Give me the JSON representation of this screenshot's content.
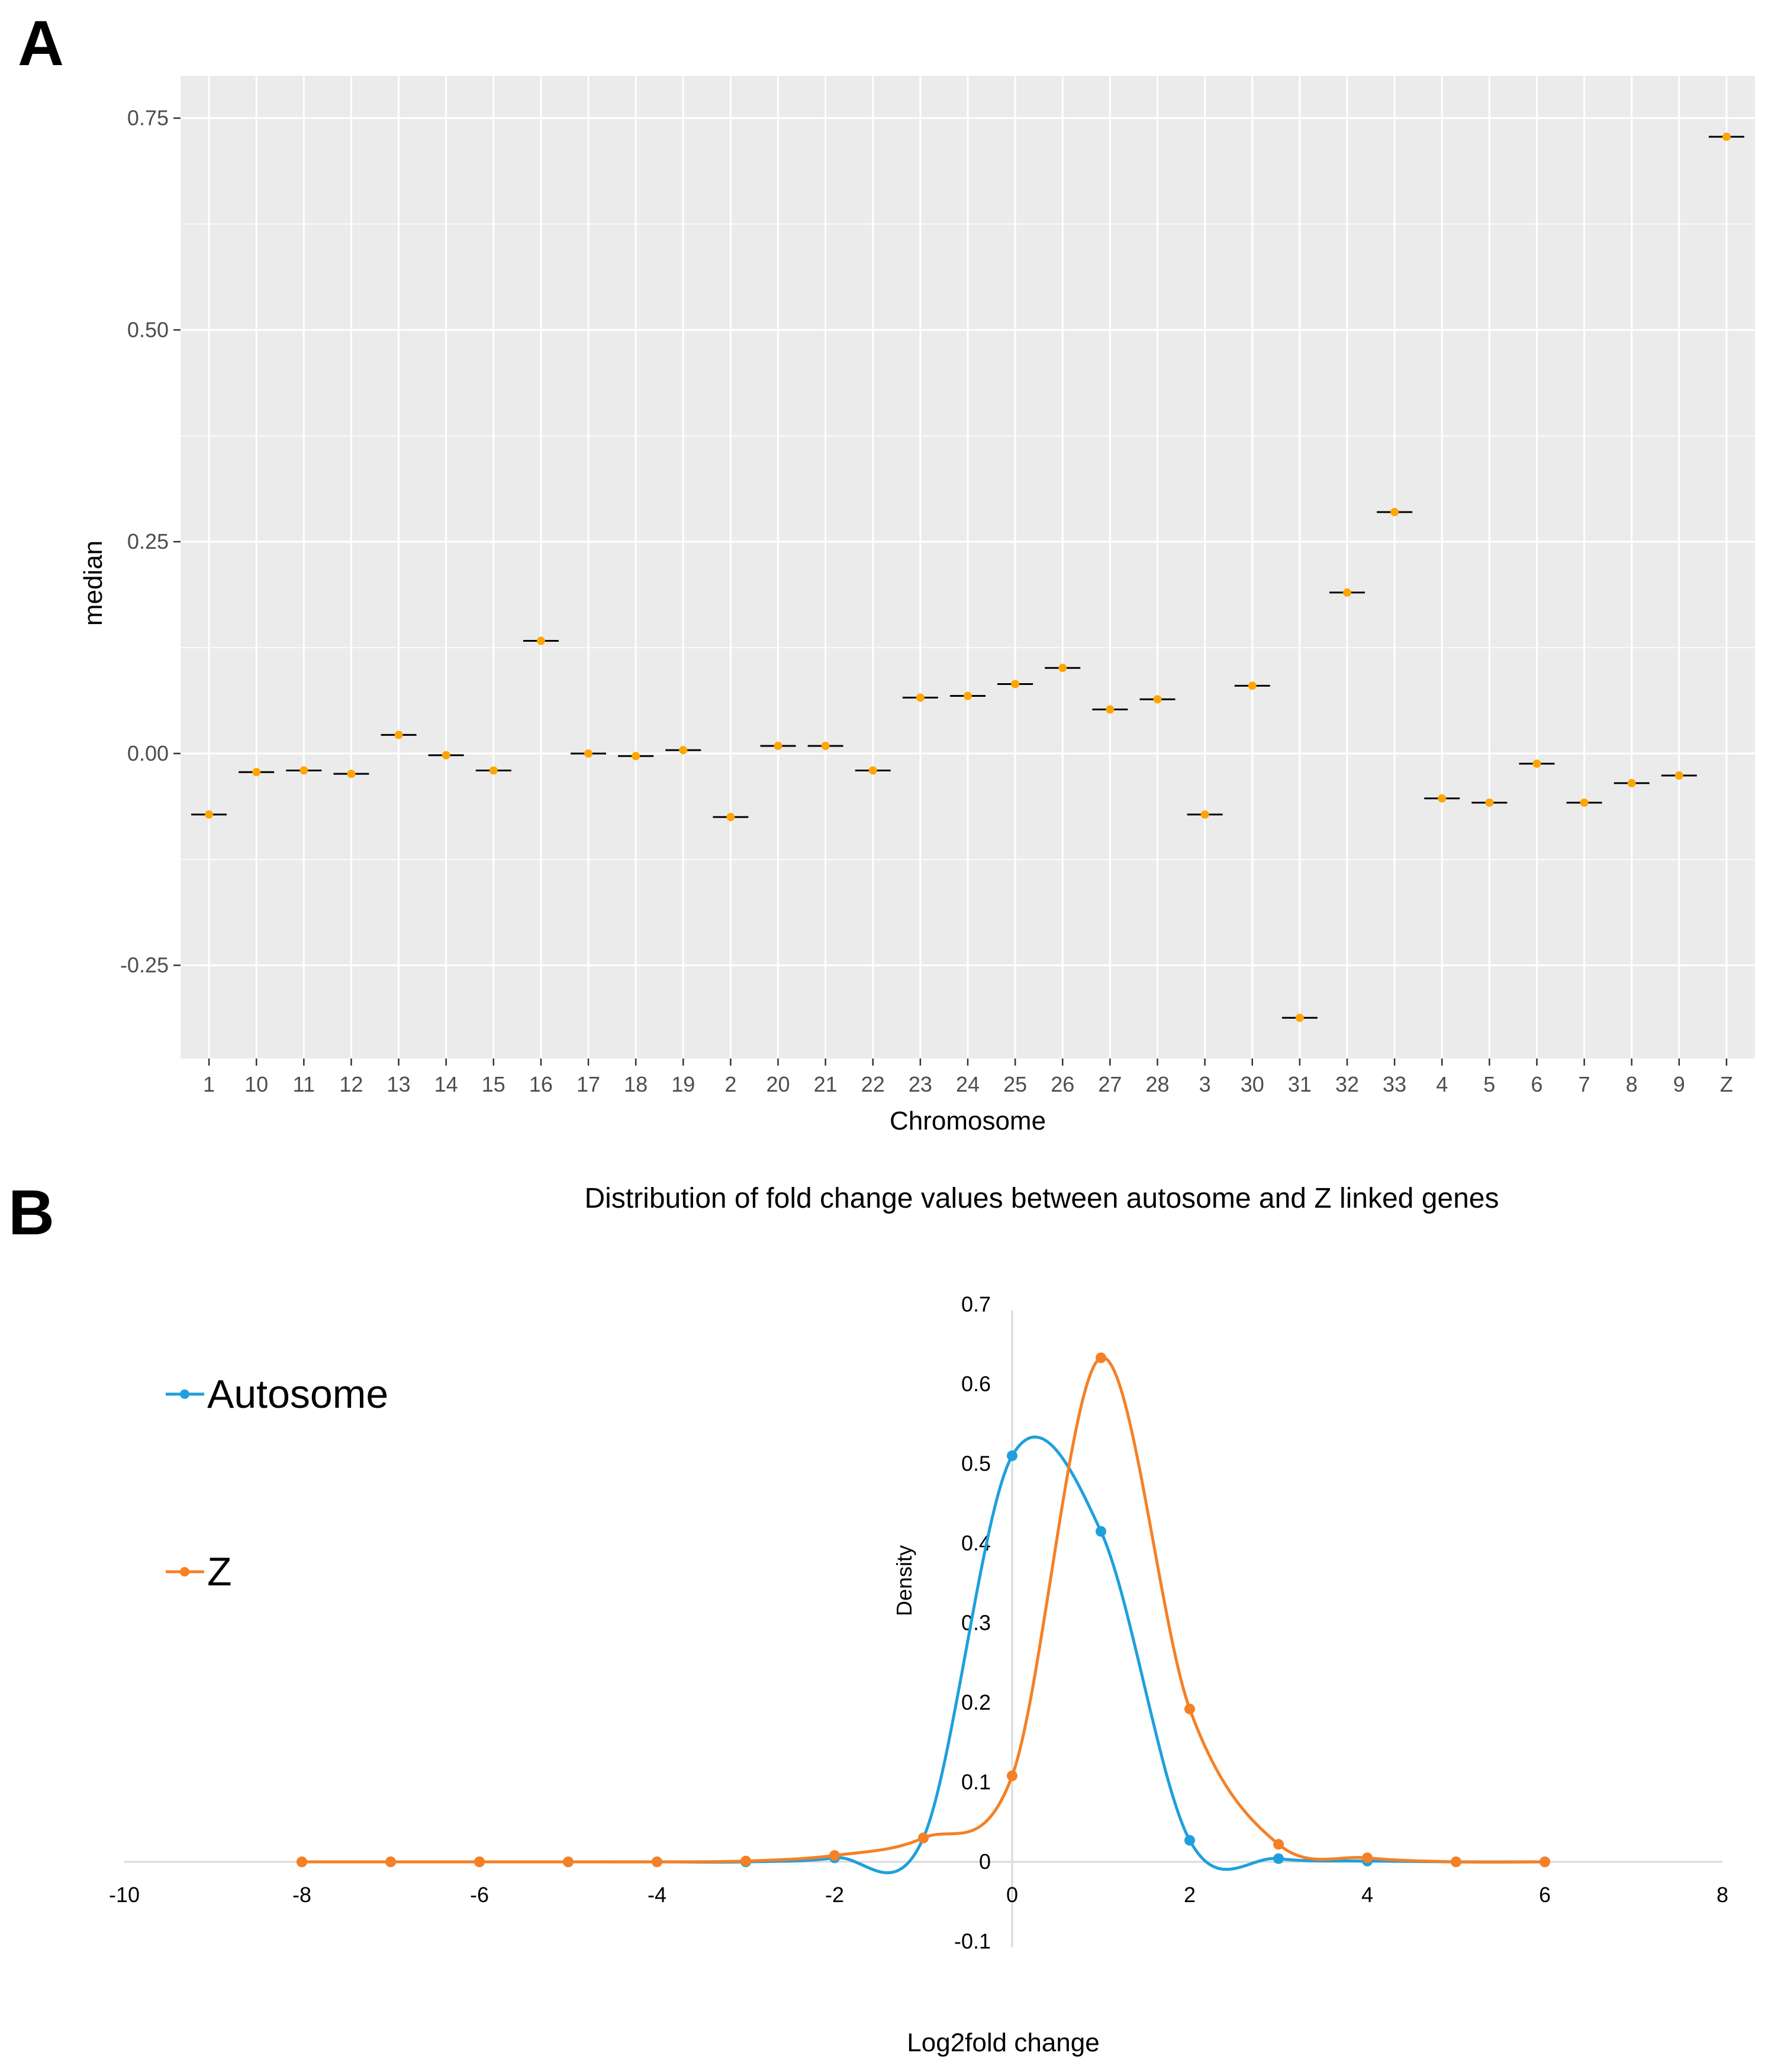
{
  "figure": {
    "panel_a_label": "A",
    "panel_b_label": "B"
  },
  "chart_data": [
    {
      "type": "scatter",
      "panel": "A",
      "title": "",
      "xlabel": "Chromosome",
      "ylabel": "median",
      "categories": [
        "1",
        "10",
        "11",
        "12",
        "13",
        "14",
        "15",
        "16",
        "17",
        "18",
        "19",
        "2",
        "20",
        "21",
        "22",
        "23",
        "24",
        "25",
        "26",
        "27",
        "28",
        "3",
        "30",
        "31",
        "32",
        "33",
        "4",
        "5",
        "6",
        "7",
        "8",
        "9",
        "Z"
      ],
      "values": [
        -0.072,
        -0.022,
        -0.02,
        -0.024,
        0.022,
        -0.002,
        -0.02,
        0.133,
        0.0,
        -0.003,
        0.004,
        -0.075,
        0.009,
        0.009,
        -0.02,
        0.066,
        0.068,
        0.082,
        0.101,
        0.052,
        0.064,
        -0.072,
        0.08,
        -0.312,
        0.19,
        0.285,
        -0.053,
        -0.058,
        -0.012,
        -0.058,
        -0.035,
        -0.026,
        0.728
      ],
      "yticks": [
        "-0.25",
        "0.00",
        "0.25",
        "0.50",
        "0.75"
      ],
      "ytick_values": [
        -0.25,
        0,
        0.25,
        0.5,
        0.75
      ],
      "ylim": [
        -0.36,
        0.8
      ],
      "colors": {
        "point": "#FFA500",
        "median_bar": "#000000",
        "panel_bg": "#EBEBEB",
        "grid": "#FFFFFF"
      }
    },
    {
      "type": "line",
      "panel": "B",
      "title": "Distribution of fold change values between autosome and Z linked genes",
      "xlabel": "Log2fold change",
      "ylabel": "Density",
      "xlim": [
        -10,
        8
      ],
      "ylim": [
        -0.1,
        0.7
      ],
      "xticks": [
        "-10",
        "-8",
        "-6",
        "-4",
        "-2",
        "0",
        "2",
        "4",
        "6",
        "8"
      ],
      "xtick_values": [
        -10,
        -8,
        -6,
        -4,
        -2,
        0,
        2,
        4,
        6,
        8
      ],
      "yticks": [
        "-0.1",
        "0",
        "0.1",
        "0.2",
        "0.3",
        "0.4",
        "0.5",
        "0.6",
        "0.7"
      ],
      "ytick_values": [
        -0.1,
        0,
        0.1,
        0.2,
        0.3,
        0.4,
        0.5,
        0.6,
        0.7
      ],
      "legend_position": "left",
      "series": [
        {
          "name": "Autosome",
          "color": "#1FA0DC",
          "x": [
            -8,
            -7,
            -6,
            -5,
            -4,
            -3,
            -2,
            -1,
            0,
            1,
            2,
            3,
            4,
            5,
            6
          ],
          "y": [
            0,
            0,
            0,
            0,
            0,
            0,
            0.005,
            0.03,
            0.51,
            0.415,
            0.027,
            0.004,
            0.001,
            0,
            0
          ]
        },
        {
          "name": "Z",
          "color": "#F58025",
          "x": [
            -8,
            -7,
            -6,
            -5,
            -4,
            -3,
            -2,
            -1,
            0,
            1,
            2,
            3,
            4,
            5,
            6
          ],
          "y": [
            0,
            0,
            0,
            0,
            0,
            0.001,
            0.008,
            0.03,
            0.108,
            0.633,
            0.192,
            0.022,
            0.005,
            0,
            0
          ]
        }
      ]
    }
  ]
}
